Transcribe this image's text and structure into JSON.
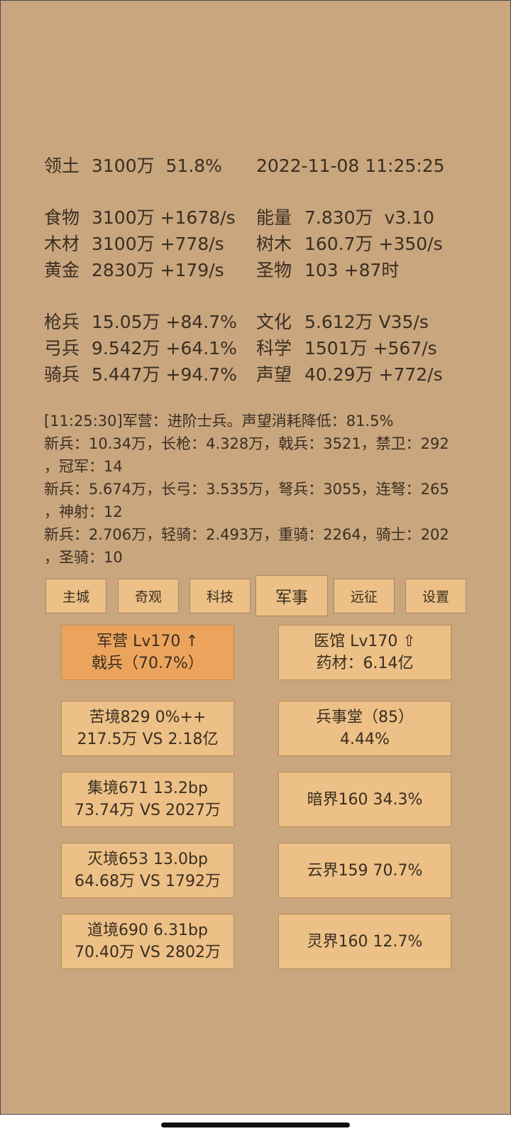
{
  "header": {
    "label": "领土",
    "value": "3100万  51.8%",
    "datetime": "2022-11-08 11:25:25"
  },
  "stats": [
    [
      {
        "label": "食物",
        "value": "3100万 +1678/s"
      },
      {
        "label": "能量",
        "value": "7.830万  v3.10"
      }
    ],
    [
      {
        "label": "木材",
        "value": "3100万 +778/s"
      },
      {
        "label": "树木",
        "value": "160.7万 +350/s"
      }
    ],
    [
      {
        "label": "黄金",
        "value": "2830万 +179/s"
      },
      {
        "label": "圣物",
        "value": "103 +87时"
      }
    ],
    [
      {
        "label": "枪兵",
        "value": "15.05万 +84.7%"
      },
      {
        "label": "文化",
        "value": "5.612万 V35/s"
      }
    ],
    [
      {
        "label": "弓兵",
        "value": "9.542万 +64.1%"
      },
      {
        "label": "科学",
        "value": "1501万 +567/s"
      }
    ],
    [
      {
        "label": "骑兵",
        "value": "5.447万 +94.7%"
      },
      {
        "label": "声望",
        "value": "40.29万 +772/s"
      }
    ]
  ],
  "log": [
    "[11:25:30]军营：进阶士兵。声望消耗降低：81.5%",
    "新兵：10.34万，长枪：4.328万，戟兵：3521，禁卫：292",
    "，冠军：14",
    "新兵：5.674万，长弓：3.535万，弩兵：3055，连弩：265",
    "，神射：12",
    "新兵：2.706万，轻骑：2.493万，重骑：2264，骑士：202",
    "，圣骑：10"
  ],
  "tabs": [
    "主城",
    "奇观",
    "科技",
    "军事",
    "远征",
    "设置"
  ],
  "buttons": [
    [
      [
        "军营 Lv170 ↑",
        "戟兵（70.7%）"
      ],
      [
        "医馆 Lv170 ⇧",
        "药材：6.14亿"
      ]
    ],
    [
      [
        "苦境829  0%++",
        "217.5万 VS 2.18亿"
      ],
      [
        "兵事堂（85）",
        "4.44%"
      ]
    ],
    [
      [
        "集境671  13.2bp",
        "73.74万 VS 2027万"
      ],
      [
        "暗界160  34.3%"
      ]
    ],
    [
      [
        "灭境653  13.0bp",
        "64.68万 VS 1792万"
      ],
      [
        "云界159  70.7%"
      ]
    ],
    [
      [
        "道境690  6.31bp",
        "70.40万 VS 2802万"
      ],
      [
        "灵界160  12.7%"
      ]
    ]
  ]
}
